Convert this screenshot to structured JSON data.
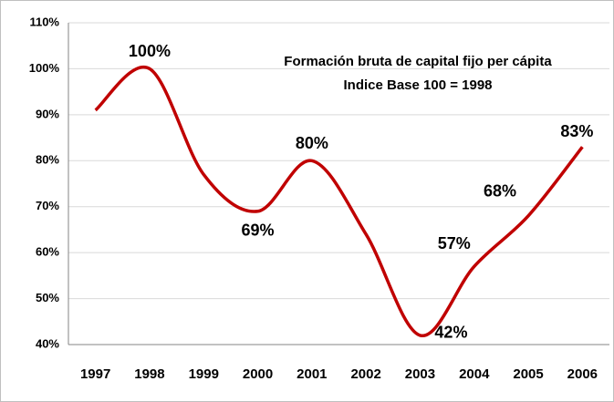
{
  "chart_data": {
    "type": "line",
    "title": "Formación bruta de capital fijo per cápita",
    "subtitle": "Indice Base 100 = 1998",
    "categories": [
      "1997",
      "1998",
      "1999",
      "2000",
      "2001",
      "2002",
      "2003",
      "2004",
      "2005",
      "2006"
    ],
    "values": [
      91,
      100,
      77,
      69,
      80,
      64,
      42,
      57,
      68,
      83
    ],
    "value_labels": [
      null,
      "100%",
      null,
      "69%",
      "80%",
      null,
      "42%",
      "57%",
      "68%",
      "83%"
    ],
    "color": "#c00000",
    "ylim": [
      40,
      110
    ],
    "yticks": [
      {
        "value": 40,
        "label": "40%"
      },
      {
        "value": 50,
        "label": "50%"
      },
      {
        "value": 60,
        "label": "60%"
      },
      {
        "value": 70,
        "label": "70%"
      },
      {
        "value": 80,
        "label": "80%"
      },
      {
        "value": 90,
        "label": "90%"
      },
      {
        "value": 100,
        "label": "100%"
      },
      {
        "value": 110,
        "label": "110%"
      }
    ],
    "grid": true
  }
}
